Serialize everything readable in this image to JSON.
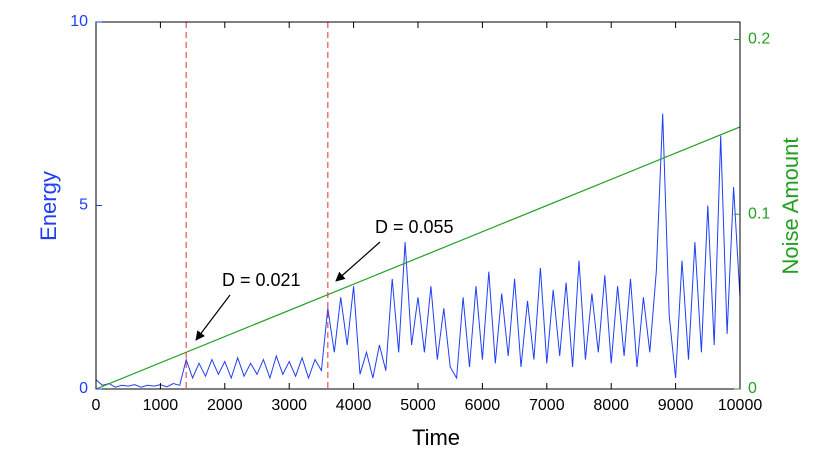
{
  "chart_data": {
    "type": "line",
    "xlabel": "Time",
    "ylabel": "Energy",
    "y2label": "Noise Amount",
    "xlim": [
      0,
      10000
    ],
    "xticks": [
      0,
      1000,
      2000,
      3000,
      4000,
      5000,
      6000,
      7000,
      8000,
      9000,
      10000
    ],
    "ylim": [
      0,
      10
    ],
    "yticks": [
      0,
      5,
      10
    ],
    "y2lim": [
      0,
      0.21
    ],
    "y2ticks": [
      0,
      0.1,
      0.2
    ],
    "vlines": [
      1400,
      3600
    ],
    "annotations": [
      "D = 0.021",
      "D = 0.055"
    ],
    "series": [
      {
        "name": "Energy",
        "color": "#1f3ff5",
        "x": [
          0,
          100,
          200,
          300,
          400,
          500,
          600,
          700,
          800,
          900,
          1000,
          1100,
          1200,
          1300,
          1400,
          1500,
          1600,
          1700,
          1800,
          1900,
          2000,
          2100,
          2200,
          2300,
          2400,
          2500,
          2600,
          2700,
          2800,
          2900,
          3000,
          3100,
          3200,
          3300,
          3400,
          3500,
          3600,
          3700,
          3800,
          3900,
          4000,
          4100,
          4200,
          4300,
          4400,
          4500,
          4600,
          4700,
          4800,
          4900,
          5000,
          5100,
          5200,
          5300,
          5400,
          5500,
          5600,
          5700,
          5800,
          5900,
          6000,
          6100,
          6200,
          6300,
          6400,
          6500,
          6600,
          6700,
          6800,
          6900,
          7000,
          7100,
          7200,
          7300,
          7400,
          7500,
          7600,
          7700,
          7800,
          7900,
          8000,
          8100,
          8200,
          8300,
          8400,
          8500,
          8600,
          8700,
          8800,
          8900,
          9000,
          9100,
          9200,
          9300,
          9400,
          9500,
          9600,
          9700,
          9800,
          9900,
          10000
        ],
        "values": [
          0.25,
          0.1,
          0.15,
          0.05,
          0.1,
          0.08,
          0.12,
          0.05,
          0.1,
          0.08,
          0.12,
          0.06,
          0.15,
          0.1,
          0.8,
          0.3,
          0.7,
          0.35,
          0.8,
          0.4,
          0.75,
          0.3,
          0.85,
          0.35,
          0.7,
          0.4,
          0.8,
          0.3,
          0.9,
          0.4,
          0.75,
          0.35,
          0.85,
          0.3,
          0.8,
          0.5,
          2.2,
          1.0,
          2.5,
          1.2,
          2.8,
          0.4,
          1.0,
          0.3,
          1.2,
          0.5,
          3.0,
          1.0,
          4.0,
          1.2,
          2.5,
          1.0,
          2.8,
          0.8,
          2.2,
          0.6,
          0.3,
          2.5,
          0.6,
          2.8,
          0.8,
          3.2,
          0.7,
          2.6,
          0.9,
          3.0,
          0.6,
          2.4,
          0.8,
          3.3,
          0.7,
          2.7,
          0.9,
          2.9,
          0.6,
          3.5,
          0.8,
          2.6,
          1.0,
          3.1,
          0.7,
          2.8,
          0.9,
          3.0,
          0.6,
          2.5,
          1.0,
          3.2,
          7.5,
          2.0,
          0.3,
          3.5,
          0.8,
          4.0,
          1.0,
          5.0,
          1.2,
          6.9,
          1.5,
          5.5,
          2.5
        ]
      },
      {
        "name": "Noise Amount",
        "color": "#22a022",
        "axis": "y2",
        "x": [
          0,
          10000
        ],
        "values": [
          0,
          0.15
        ]
      }
    ]
  }
}
